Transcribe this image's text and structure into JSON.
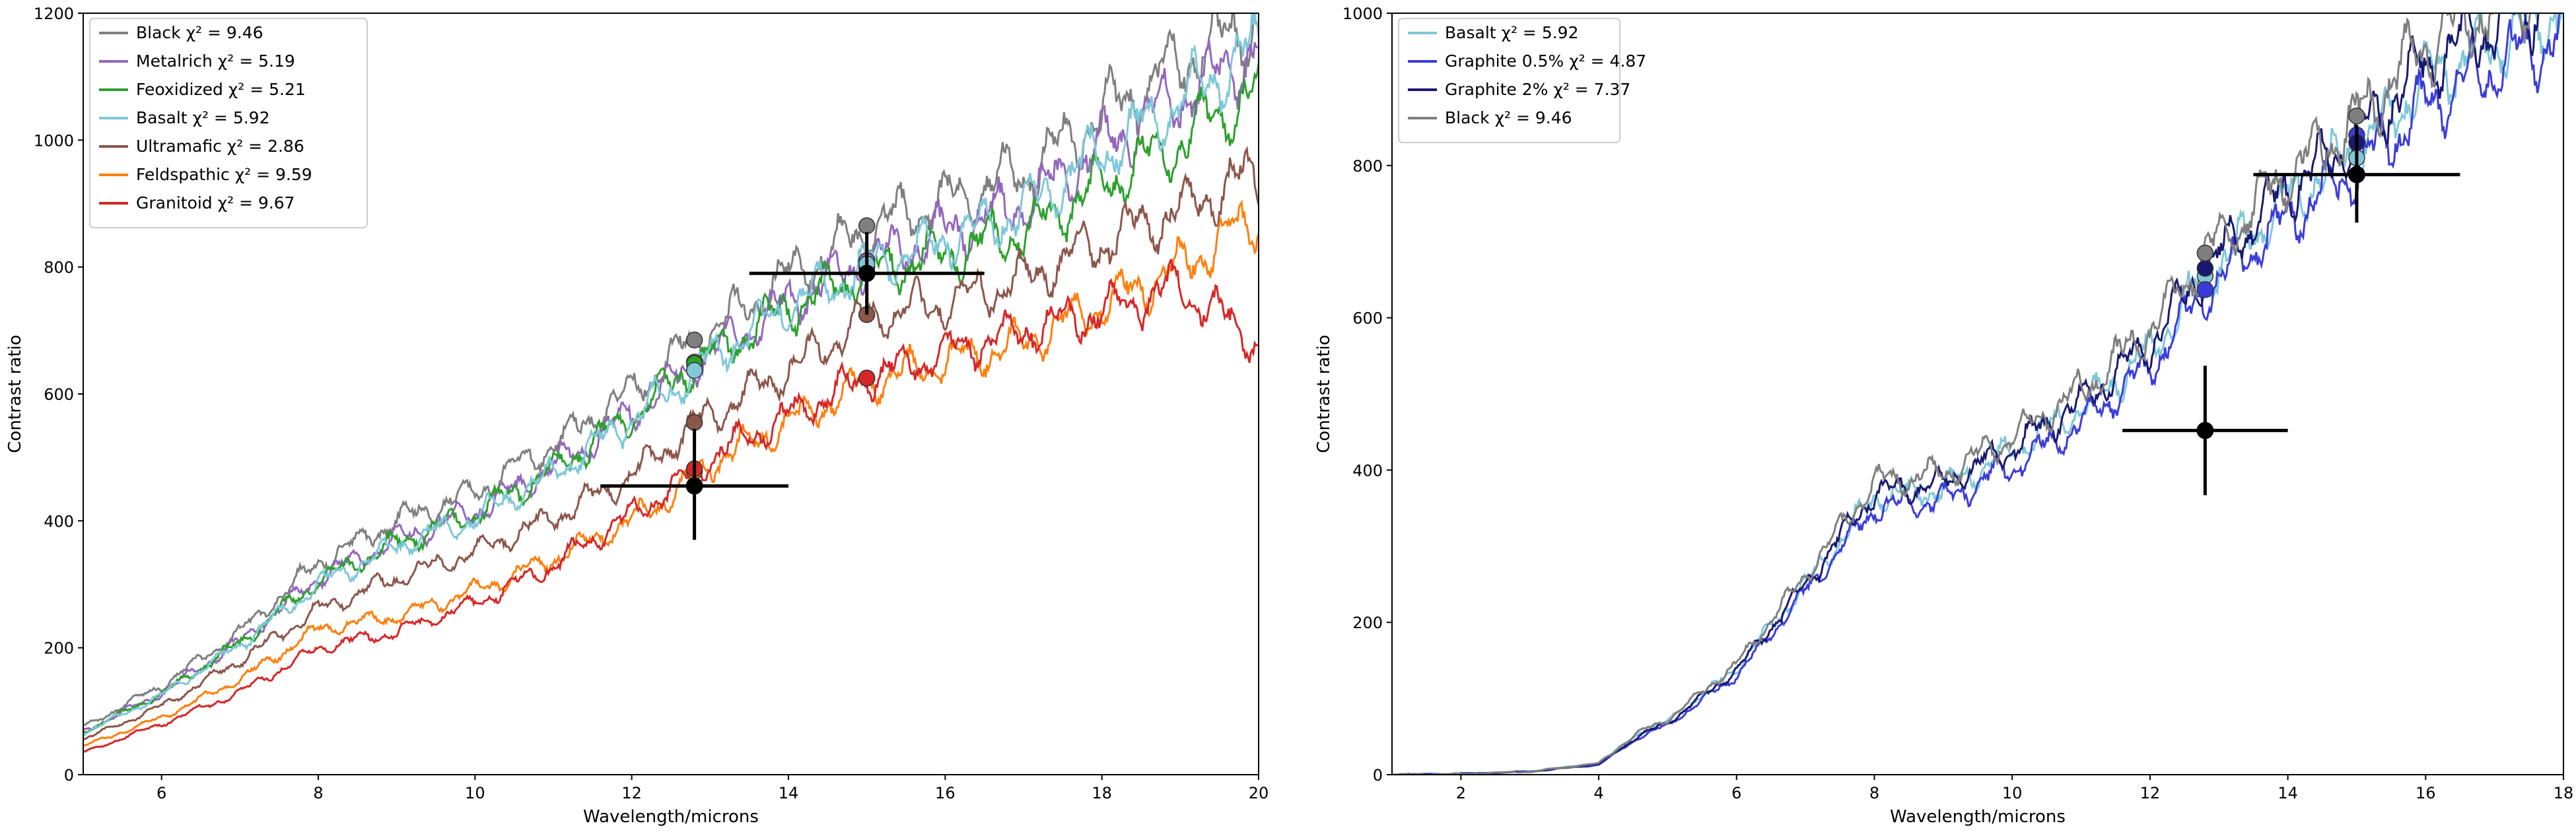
{
  "chart_data": [
    {
      "type": "line",
      "title": "",
      "xlabel": "Wavelength/microns",
      "ylabel": "Contrast ratio",
      "xlim": [
        5,
        20
      ],
      "ylim": [
        0,
        1200
      ],
      "xticks": [
        "6",
        "8",
        "10",
        "12",
        "14",
        "16",
        "18",
        "20"
      ],
      "yticks": [
        "0",
        "200",
        "400",
        "600",
        "800",
        "1000",
        "1200"
      ],
      "legend_position": "top-left",
      "series": [
        {
          "name": "Black",
          "chi2_label": "χ² = 9.46",
          "color": "#7f7f7f",
          "x": [
            5,
            6,
            7,
            8,
            9,
            10,
            11,
            12,
            12.8,
            13,
            14,
            15,
            16,
            17,
            18,
            19,
            20
          ],
          "values": [
            75,
            140,
            225,
            335,
            400,
            445,
            520,
            605,
            685,
            700,
            785,
            860,
            905,
            950,
            1040,
            1120,
            1190
          ],
          "markers": [
            {
              "x": 12.8,
              "y": 685
            },
            {
              "x": 15,
              "y": 865
            }
          ]
        },
        {
          "name": "Metalrich",
          "chi2_label": "χ² = 5.19",
          "color": "#9467bd",
          "x": [
            5,
            6,
            7,
            8,
            9,
            10,
            11,
            12,
            12.8,
            13,
            14,
            15,
            16,
            17,
            18,
            19,
            20
          ],
          "values": [
            68,
            128,
            210,
            310,
            370,
            415,
            485,
            570,
            645,
            665,
            745,
            810,
            855,
            900,
            990,
            1070,
            1140
          ],
          "markers": [
            {
              "x": 12.8,
              "y": 650
            },
            {
              "x": 15,
              "y": 810
            }
          ]
        },
        {
          "name": "Feoxidized",
          "chi2_label": "χ² = 5.21",
          "color": "#2ca02c",
          "x": [
            5,
            6,
            7,
            8,
            9,
            10,
            11,
            12,
            12.8,
            13,
            14,
            15,
            16,
            17,
            18,
            19,
            20
          ],
          "values": [
            68,
            127,
            208,
            305,
            365,
            410,
            480,
            565,
            645,
            660,
            735,
            795,
            820,
            855,
            930,
            1000,
            1080
          ],
          "markers": [
            {
              "x": 12.8,
              "y": 648
            },
            {
              "x": 15,
              "y": 800
            }
          ]
        },
        {
          "name": "Basalt",
          "chi2_label": "χ² = 5.92",
          "color": "#7ec8d8",
          "x": [
            5,
            6,
            7,
            8,
            9,
            10,
            11,
            12,
            12.8,
            13,
            14,
            15,
            16,
            17,
            18,
            19,
            20
          ],
          "values": [
            65,
            125,
            205,
            300,
            360,
            405,
            475,
            560,
            635,
            655,
            740,
            800,
            845,
            890,
            980,
            1060,
            1150
          ],
          "markers": [
            {
              "x": 12.8,
              "y": 637
            },
            {
              "x": 15,
              "y": 805
            }
          ]
        },
        {
          "name": "Ultramafic",
          "chi2_label": "χ² = 2.86",
          "color": "#8c564b",
          "x": [
            5,
            6,
            7,
            8,
            9,
            10,
            11,
            12,
            12.8,
            13,
            14,
            15,
            16,
            17,
            18,
            19,
            20
          ],
          "values": [
            55,
            108,
            180,
            260,
            310,
            350,
            405,
            470,
            550,
            565,
            640,
            720,
            745,
            780,
            840,
            890,
            950
          ],
          "markers": [
            {
              "x": 12.8,
              "y": 555
            },
            {
              "x": 15,
              "y": 725
            }
          ]
        },
        {
          "name": "Feldspathic",
          "chi2_label": "χ² = 9.59",
          "color": "#ff7f0e",
          "x": [
            5,
            6,
            7,
            8,
            9,
            10,
            11,
            12,
            12.8,
            13,
            14,
            15,
            16,
            17,
            18,
            19,
            20
          ],
          "values": [
            45,
            90,
            150,
            230,
            250,
            290,
            340,
            400,
            465,
            490,
            555,
            620,
            650,
            680,
            740,
            800,
            880
          ],
          "markers": [
            {
              "x": 12.8,
              "y": 478
            },
            {
              "x": 15,
              "y": 625
            }
          ]
        },
        {
          "name": "Granitoid",
          "chi2_label": "χ² = 9.67",
          "color": "#d62728",
          "x": [
            5,
            6,
            7,
            8,
            9,
            10,
            11,
            12,
            12.8,
            13,
            14,
            15,
            16,
            17,
            18,
            19,
            20
          ],
          "values": [
            35,
            80,
            130,
            200,
            225,
            270,
            330,
            410,
            475,
            500,
            565,
            625,
            665,
            700,
            730,
            770,
            680
          ],
          "markers": [
            {
              "x": 12.8,
              "y": 482
            },
            {
              "x": 15,
              "y": 625
            }
          ]
        }
      ],
      "observations": [
        {
          "x": 12.8,
          "y": 455,
          "xerr": [
            11.6,
            14.0
          ],
          "yerr": [
            370,
            545
          ]
        },
        {
          "x": 15.0,
          "y": 790,
          "xerr": [
            13.5,
            16.5
          ],
          "yerr": [
            725,
            855
          ]
        }
      ]
    },
    {
      "type": "line",
      "title": "",
      "xlabel": "Wavelength/microns",
      "ylabel": "Contrast ratio",
      "xlim": [
        1,
        18
      ],
      "ylim": [
        0,
        1000
      ],
      "xticks": [
        "2",
        "4",
        "6",
        "8",
        "10",
        "12",
        "14",
        "16",
        "18"
      ],
      "yticks": [
        "0",
        "200",
        "400",
        "600",
        "800",
        "1000"
      ],
      "legend_position": "top-left",
      "series": [
        {
          "name": "Basalt",
          "chi2_label": "χ² = 5.92",
          "color": "#7ec8d8",
          "x": [
            1,
            2,
            3,
            4,
            4.6,
            5,
            6,
            7,
            8,
            9,
            10,
            11,
            12,
            12.8,
            13,
            14,
            15,
            16,
            17,
            18
          ],
          "values": [
            0,
            1,
            4,
            15,
            55,
            70,
            140,
            250,
            365,
            375,
            425,
            480,
            555,
            655,
            670,
            755,
            820,
            915,
            960,
            1010
          ],
          "markers": [
            {
              "x": 12.8,
              "y": 655
            },
            {
              "x": 15,
              "y": 810
            }
          ]
        },
        {
          "name": "Graphite 0.5%",
          "chi2_label": "χ² = 4.87",
          "color": "#3b3bdb",
          "x": [
            1,
            2,
            3,
            4,
            4.6,
            5,
            6,
            7,
            8,
            9,
            10,
            11,
            12,
            12.8,
            13,
            14,
            15,
            16,
            17,
            18
          ],
          "values": [
            0,
            1,
            4,
            13,
            50,
            65,
            130,
            240,
            350,
            360,
            405,
            460,
            535,
            635,
            650,
            730,
            795,
            880,
            930,
            975
          ],
          "markers": [
            {
              "x": 12.8,
              "y": 637
            },
            {
              "x": 15,
              "y": 840
            }
          ]
        },
        {
          "name": "Graphite 2%",
          "chi2_label": "χ² = 7.37",
          "color": "#191970",
          "x": [
            1,
            2,
            3,
            4,
            4.6,
            5,
            6,
            7,
            8,
            9,
            10,
            11,
            12,
            12.8,
            13,
            14,
            15,
            16,
            17,
            18
          ],
          "values": [
            0,
            1,
            4,
            14,
            52,
            68,
            137,
            250,
            370,
            382,
            430,
            490,
            565,
            665,
            680,
            770,
            835,
            935,
            985,
            1030
          ],
          "markers": [
            {
              "x": 12.8,
              "y": 665
            },
            {
              "x": 15,
              "y": 830
            }
          ]
        },
        {
          "name": "Black",
          "chi2_label": "χ² = 9.46",
          "color": "#7f7f7f",
          "x": [
            1,
            2,
            3,
            4,
            4.6,
            5,
            6,
            7,
            8,
            9,
            10,
            11,
            12,
            12.8,
            13,
            14,
            15,
            16,
            17,
            18
          ],
          "values": [
            0,
            1,
            4,
            15,
            57,
            72,
            145,
            262,
            385,
            395,
            445,
            505,
            585,
            685,
            700,
            790,
            860,
            960,
            1010,
            1050
          ],
          "markers": [
            {
              "x": 12.8,
              "y": 685
            },
            {
              "x": 15,
              "y": 865
            }
          ]
        }
      ],
      "observations": [
        {
          "x": 12.8,
          "y": 452,
          "xerr": [
            11.6,
            14.0
          ],
          "yerr": [
            367,
            537
          ]
        },
        {
          "x": 15.0,
          "y": 788,
          "xerr": [
            13.5,
            16.5
          ],
          "yerr": [
            725,
            853
          ]
        }
      ]
    }
  ]
}
